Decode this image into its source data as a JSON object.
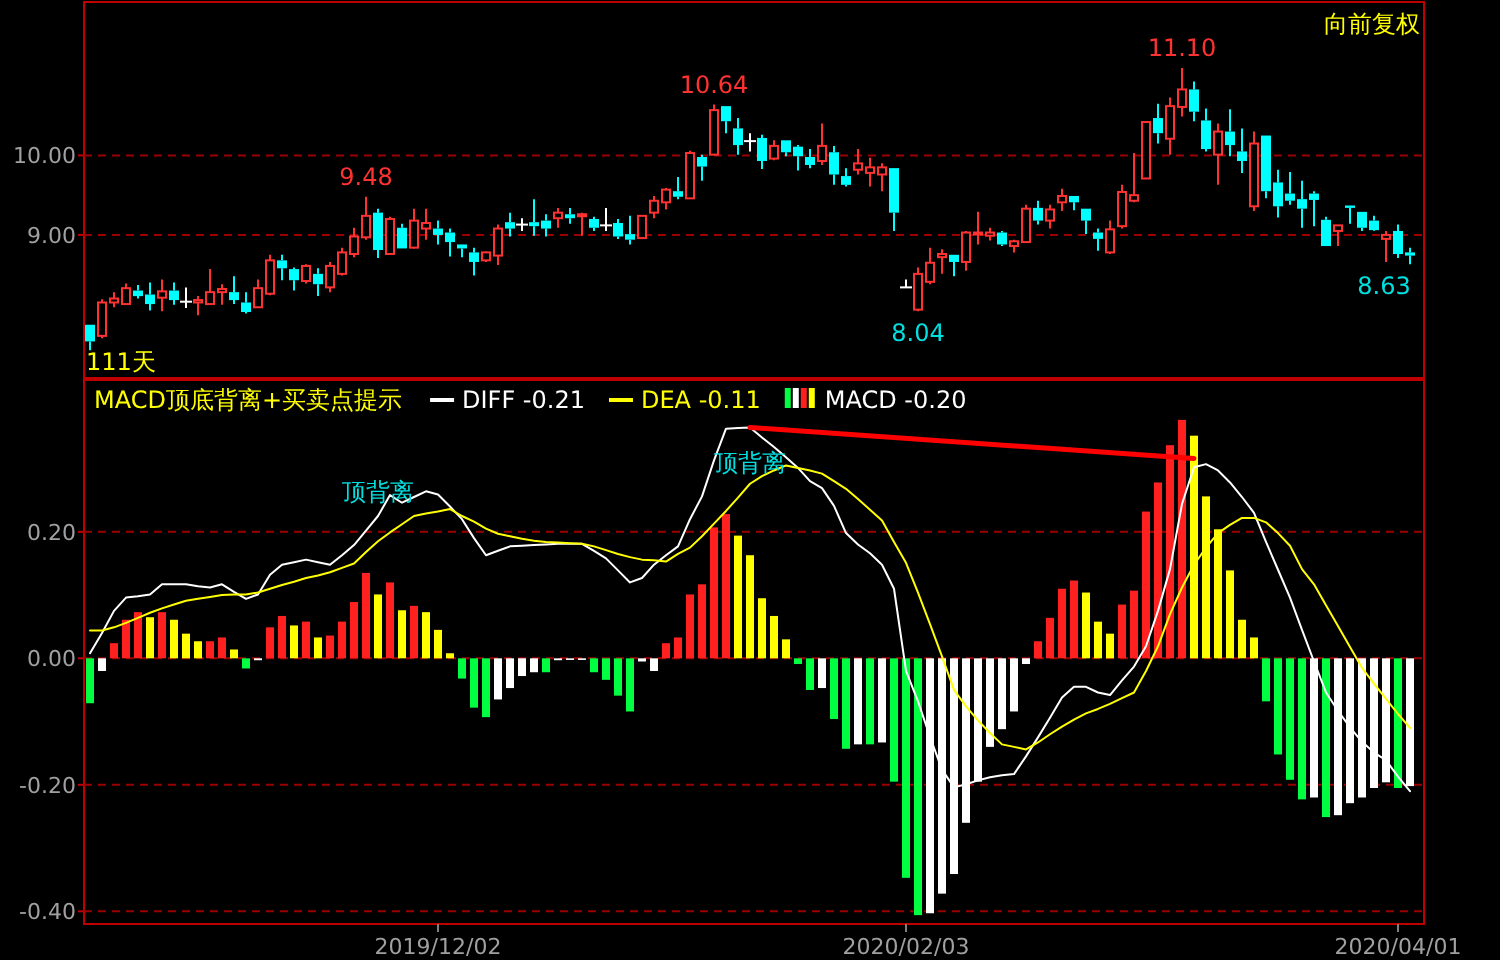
{
  "chart_data": [
    {
      "type": "candlestick",
      "categories": [
        null,
        null,
        null,
        null,
        null,
        null,
        null,
        null,
        null,
        null,
        null,
        null,
        null,
        null,
        null,
        null,
        null,
        null,
        null,
        null,
        null,
        null,
        null,
        null,
        null,
        null,
        null,
        null,
        null,
        "2019/12/02",
        null,
        null,
        null,
        null,
        null,
        null,
        null,
        null,
        null,
        null,
        null,
        null,
        null,
        null,
        null,
        null,
        null,
        null,
        null,
        null,
        null,
        null,
        null,
        null,
        null,
        null,
        null,
        null,
        null,
        null,
        null,
        null,
        null,
        null,
        null,
        null,
        null,
        null,
        "2020/02/03",
        null,
        null,
        null,
        null,
        null,
        null,
        null,
        null,
        null,
        null,
        null,
        null,
        null,
        null,
        null,
        null,
        null,
        null,
        null,
        null,
        null,
        null,
        null,
        null,
        null,
        null,
        null,
        null,
        null,
        null,
        null,
        null,
        null,
        null,
        null,
        null,
        null,
        null,
        null,
        null,
        "2020/04/01",
        null
      ],
      "ohlc": [
        [
          7.87,
          7.87,
          7.55,
          7.66
        ],
        [
          7.73,
          8.19,
          7.7,
          8.15
        ],
        [
          8.15,
          8.28,
          8.09,
          8.2
        ],
        [
          8.13,
          8.39,
          8.12,
          8.33
        ],
        [
          8.3,
          8.37,
          8.2,
          8.23
        ],
        [
          8.25,
          8.4,
          8.05,
          8.13
        ],
        [
          8.21,
          8.44,
          8.04,
          8.29
        ],
        [
          8.3,
          8.4,
          8.12,
          8.18
        ],
        [
          8.16,
          8.34,
          8.08,
          8.16
        ],
        [
          8.15,
          8.23,
          7.99,
          8.18
        ],
        [
          8.13,
          8.57,
          8.12,
          8.28
        ],
        [
          8.28,
          8.38,
          8.12,
          8.32
        ],
        [
          8.28,
          8.48,
          8.13,
          8.18
        ],
        [
          8.15,
          8.28,
          8.01,
          8.03
        ],
        [
          8.09,
          8.44,
          8.08,
          8.33
        ],
        [
          8.26,
          8.75,
          8.24,
          8.68
        ],
        [
          8.68,
          8.75,
          8.43,
          8.58
        ],
        [
          8.57,
          8.59,
          8.3,
          8.43
        ],
        [
          8.42,
          8.63,
          8.39,
          8.61
        ],
        [
          8.51,
          8.58,
          8.23,
          8.38
        ],
        [
          8.34,
          8.66,
          8.28,
          8.61
        ],
        [
          8.51,
          8.84,
          8.49,
          8.78
        ],
        [
          8.76,
          9.09,
          8.72,
          8.98
        ],
        [
          8.97,
          9.48,
          8.94,
          9.24
        ],
        [
          9.28,
          9.33,
          8.71,
          8.81
        ],
        [
          8.76,
          9.23,
          8.76,
          9.2
        ],
        [
          9.09,
          9.14,
          8.83,
          8.83
        ],
        [
          8.84,
          9.33,
          8.83,
          9.18
        ],
        [
          9.08,
          9.33,
          8.94,
          9.15
        ],
        [
          9.08,
          9.18,
          8.88,
          9.0
        ],
        [
          9.03,
          9.08,
          8.73,
          8.91
        ],
        [
          8.88,
          8.88,
          8.72,
          8.83
        ],
        [
          8.78,
          8.84,
          8.49,
          8.66
        ],
        [
          8.68,
          8.79,
          8.66,
          8.78
        ],
        [
          8.74,
          9.13,
          8.62,
          9.08
        ],
        [
          9.16,
          9.28,
          8.98,
          9.08
        ],
        [
          9.13,
          9.21,
          9.05,
          9.13
        ],
        [
          9.16,
          9.45,
          8.99,
          9.11
        ],
        [
          9.18,
          9.26,
          8.98,
          9.08
        ],
        [
          9.21,
          9.34,
          9.09,
          9.28
        ],
        [
          9.26,
          9.34,
          9.14,
          9.21
        ],
        [
          9.24,
          9.28,
          8.99,
          9.26
        ],
        [
          9.2,
          9.23,
          9.05,
          9.09
        ],
        [
          9.12,
          9.34,
          9.05,
          9.12
        ],
        [
          9.15,
          9.2,
          8.95,
          8.98
        ],
        [
          9.01,
          9.24,
          8.88,
          8.94
        ],
        [
          8.96,
          9.24,
          8.96,
          9.24
        ],
        [
          9.28,
          9.49,
          9.21,
          9.43
        ],
        [
          9.41,
          9.59,
          9.32,
          9.57
        ],
        [
          9.55,
          9.73,
          9.45,
          9.48
        ],
        [
          9.46,
          10.06,
          9.46,
          10.03
        ],
        [
          9.98,
          10.01,
          9.68,
          9.86
        ],
        [
          10.01,
          10.64,
          10.01,
          10.57
        ],
        [
          10.62,
          10.62,
          10.28,
          10.43
        ],
        [
          10.34,
          10.47,
          10.01,
          10.13
        ],
        [
          10.18,
          10.28,
          10.05,
          10.18
        ],
        [
          10.22,
          10.26,
          9.83,
          9.93
        ],
        [
          9.96,
          10.19,
          9.94,
          10.12
        ],
        [
          10.19,
          10.19,
          9.99,
          10.04
        ],
        [
          10.11,
          10.13,
          9.81,
          9.99
        ],
        [
          9.98,
          10.08,
          9.84,
          9.88
        ],
        [
          9.93,
          10.4,
          9.88,
          10.12
        ],
        [
          10.04,
          10.12,
          9.63,
          9.76
        ],
        [
          9.74,
          9.84,
          9.61,
          9.63
        ],
        [
          9.82,
          10.08,
          9.76,
          9.9
        ],
        [
          9.78,
          9.97,
          9.61,
          9.85
        ],
        [
          9.76,
          9.9,
          9.55,
          9.85
        ],
        [
          9.84,
          9.84,
          9.05,
          9.28
        ],
        [
          8.34,
          8.44,
          8.34,
          8.34
        ],
        [
          8.06,
          8.59,
          8.04,
          8.51
        ],
        [
          8.41,
          8.84,
          8.38,
          8.65
        ],
        [
          8.72,
          8.82,
          8.51,
          8.76
        ],
        [
          8.75,
          8.75,
          8.48,
          8.66
        ],
        [
          8.66,
          9.05,
          8.55,
          9.03
        ],
        [
          9.01,
          9.29,
          8.88,
          9.03
        ],
        [
          8.99,
          9.09,
          8.93,
          9.03
        ],
        [
          9.03,
          9.05,
          8.86,
          8.88
        ],
        [
          8.86,
          8.94,
          8.78,
          8.92
        ],
        [
          8.91,
          9.38,
          8.91,
          9.33
        ],
        [
          9.34,
          9.43,
          9.13,
          9.18
        ],
        [
          9.18,
          9.38,
          9.08,
          9.32
        ],
        [
          9.41,
          9.58,
          9.3,
          9.49
        ],
        [
          9.49,
          9.49,
          9.31,
          9.41
        ],
        [
          9.33,
          9.33,
          9.01,
          9.18
        ],
        [
          9.03,
          9.08,
          8.8,
          8.95
        ],
        [
          8.78,
          9.18,
          8.76,
          9.07
        ],
        [
          9.11,
          9.63,
          9.08,
          9.54
        ],
        [
          9.43,
          10.03,
          9.41,
          9.5
        ],
        [
          9.71,
          10.42,
          9.71,
          10.42
        ],
        [
          10.47,
          10.65,
          10.15,
          10.28
        ],
        [
          10.21,
          10.73,
          10.01,
          10.62
        ],
        [
          10.61,
          11.1,
          10.49,
          10.83
        ],
        [
          10.83,
          10.93,
          10.43,
          10.55
        ],
        [
          10.44,
          10.59,
          10.05,
          10.08
        ],
        [
          10.01,
          10.4,
          9.63,
          10.3
        ],
        [
          10.3,
          10.58,
          9.99,
          10.13
        ],
        [
          10.05,
          10.34,
          9.78,
          9.93
        ],
        [
          9.36,
          10.3,
          9.3,
          10.15
        ],
        [
          10.25,
          10.25,
          9.46,
          9.55
        ],
        [
          9.66,
          9.82,
          9.22,
          9.36
        ],
        [
          9.52,
          9.79,
          9.38,
          9.43
        ],
        [
          9.45,
          9.68,
          9.09,
          9.33
        ],
        [
          9.52,
          9.55,
          9.11,
          9.44
        ],
        [
          9.19,
          9.23,
          8.86,
          8.86
        ],
        [
          9.05,
          9.12,
          8.86,
          9.12
        ],
        [
          9.37,
          9.37,
          9.14,
          9.34
        ],
        [
          9.29,
          9.29,
          9.05,
          9.09
        ],
        [
          9.18,
          9.24,
          9.05,
          9.06
        ],
        [
          8.95,
          9.05,
          8.66,
          9.0
        ],
        [
          9.05,
          9.13,
          8.71,
          8.76
        ],
        [
          8.78,
          8.84,
          8.63,
          8.74
        ]
      ],
      "ylim": [
        7.2,
        11.93
      ],
      "yticks": [
        {
          "value": 10,
          "label": "10.00"
        },
        {
          "value": 9,
          "label": "9.00"
        }
      ],
      "grid": "y",
      "tick_labels": "y",
      "annotations": [
        "9.48",
        "10.64",
        "11.10",
        "8.04",
        "8.63",
        "111天",
        "向前复权"
      ]
    },
    {
      "type": "bar",
      "title": "MACD顶底背离+买卖点提示",
      "categories": [
        null,
        null,
        null,
        null,
        null,
        null,
        null,
        null,
        null,
        null,
        null,
        null,
        null,
        null,
        null,
        null,
        null,
        null,
        null,
        null,
        null,
        null,
        null,
        null,
        null,
        null,
        null,
        null,
        null,
        "2019/12/02",
        null,
        null,
        null,
        null,
        null,
        null,
        null,
        null,
        null,
        null,
        null,
        null,
        null,
        null,
        null,
        null,
        null,
        null,
        null,
        null,
        null,
        null,
        null,
        null,
        null,
        null,
        null,
        null,
        null,
        null,
        null,
        null,
        null,
        null,
        null,
        null,
        null,
        null,
        "2020/02/03",
        null,
        null,
        null,
        null,
        null,
        null,
        null,
        null,
        null,
        null,
        null,
        null,
        null,
        null,
        null,
        null,
        null,
        null,
        null,
        null,
        null,
        null,
        null,
        null,
        null,
        null,
        null,
        null,
        null,
        null,
        null,
        null,
        null,
        null,
        null,
        null,
        null,
        null,
        null,
        null,
        "2020/04/01",
        null
      ],
      "series": [
        {
          "name": "DIFF -0.21",
          "type": "line",
          "color": "#ffffff",
          "values": [
            0.008,
            0.04,
            0.075,
            0.096,
            0.098,
            0.101,
            0.117,
            0.117,
            0.117,
            0.114,
            0.112,
            0.117,
            0.105,
            0.094,
            0.101,
            0.132,
            0.148,
            0.152,
            0.156,
            0.152,
            0.148,
            0.163,
            0.179,
            0.202,
            0.225,
            0.258,
            0.246,
            0.255,
            0.264,
            0.259,
            0.24,
            0.22,
            0.19,
            0.163,
            0.17,
            0.177,
            0.178,
            0.179,
            0.18,
            0.181,
            0.181,
            0.181,
            0.17,
            0.158,
            0.139,
            0.12,
            0.127,
            0.148,
            0.163,
            0.177,
            0.22,
            0.256,
            0.313,
            0.363,
            0.364,
            0.365,
            0.349,
            0.334,
            0.318,
            0.301,
            0.28,
            0.269,
            0.241,
            0.198,
            0.18,
            0.166,
            0.148,
            0.11,
            -0.02,
            -0.068,
            -0.124,
            -0.176,
            -0.204,
            -0.199,
            -0.193,
            -0.188,
            -0.185,
            -0.183,
            -0.155,
            -0.125,
            -0.094,
            -0.062,
            -0.045,
            -0.045,
            -0.054,
            -0.058,
            -0.035,
            -0.013,
            0.019,
            0.075,
            0.141,
            0.244,
            0.302,
            0.307,
            0.297,
            0.278,
            0.255,
            0.23,
            0.184,
            0.14,
            0.096,
            0.045,
            -0.005,
            -0.054,
            -0.083,
            -0.109,
            -0.132,
            -0.149,
            -0.161,
            -0.187,
            -0.21
          ]
        },
        {
          "name": "DEA -0.11",
          "type": "line",
          "color": "#ffff00",
          "values": [
            0.044,
            0.044,
            0.049,
            0.056,
            0.064,
            0.072,
            0.079,
            0.085,
            0.091,
            0.094,
            0.097,
            0.1,
            0.101,
            0.101,
            0.104,
            0.11,
            0.116,
            0.121,
            0.127,
            0.131,
            0.136,
            0.143,
            0.15,
            0.168,
            0.185,
            0.199,
            0.212,
            0.225,
            0.229,
            0.232,
            0.236,
            0.225,
            0.216,
            0.205,
            0.197,
            0.193,
            0.189,
            0.186,
            0.184,
            0.183,
            0.182,
            0.181,
            0.177,
            0.171,
            0.165,
            0.16,
            0.156,
            0.155,
            0.153,
            0.165,
            0.175,
            0.193,
            0.213,
            0.233,
            0.254,
            0.276,
            0.288,
            0.297,
            0.305,
            0.301,
            0.297,
            0.292,
            0.28,
            0.268,
            0.252,
            0.235,
            0.218,
            0.184,
            0.151,
            0.104,
            0.054,
            0.003,
            -0.05,
            -0.076,
            -0.098,
            -0.118,
            -0.136,
            -0.14,
            -0.144,
            -0.133,
            -0.12,
            -0.108,
            -0.097,
            -0.087,
            -0.08,
            -0.072,
            -0.063,
            -0.054,
            -0.02,
            0.019,
            0.07,
            0.112,
            0.148,
            0.175,
            0.198,
            0.211,
            0.222,
            0.222,
            0.215,
            0.198,
            0.178,
            0.141,
            0.117,
            0.084,
            0.051,
            0.018,
            -0.015,
            -0.04,
            -0.064,
            -0.088,
            -0.11
          ]
        },
        {
          "name": "MACD -0.20",
          "type": "bar",
          "values": [
            -0.071,
            -0.02,
            0.024,
            0.061,
            0.073,
            0.065,
            0.073,
            0.061,
            0.039,
            0.027,
            0.027,
            0.033,
            0.014,
            -0.016,
            -0.003,
            0.049,
            0.067,
            0.052,
            0.058,
            0.033,
            0.036,
            0.058,
            0.089,
            0.135,
            0.101,
            0.12,
            0.076,
            0.083,
            0.073,
            0.045,
            0.008,
            -0.032,
            -0.078,
            -0.093,
            -0.065,
            -0.047,
            -0.028,
            -0.022,
            -0.022,
            -0.003,
            -0.002,
            -0.001,
            -0.022,
            -0.034,
            -0.059,
            -0.084,
            -0.005,
            -0.02,
            0.024,
            0.033,
            0.101,
            0.117,
            0.207,
            0.228,
            0.194,
            0.163,
            0.095,
            0.067,
            0.03,
            -0.009,
            -0.05,
            -0.047,
            -0.096,
            -0.143,
            -0.136,
            -0.136,
            -0.133,
            -0.195,
            -0.347,
            -0.406,
            -0.403,
            -0.372,
            -0.341,
            -0.26,
            -0.195,
            -0.14,
            -0.112,
            -0.084,
            -0.009,
            0.027,
            0.064,
            0.11,
            0.123,
            0.104,
            0.058,
            0.039,
            0.085,
            0.107,
            0.232,
            0.278,
            0.337,
            0.377,
            0.352,
            0.256,
            0.204,
            0.139,
            0.061,
            0.033,
            -0.068,
            -0.152,
            -0.192,
            -0.223,
            -0.22,
            -0.251,
            -0.248,
            -0.229,
            -0.22,
            -0.205,
            -0.196,
            -0.205,
            -0.202
          ],
          "colors": [
            "#00ff40",
            "#ffffff",
            "#ff2020",
            "#ff2020",
            "#ff2020",
            "#ffff00",
            "#ff2020",
            "#ffff00",
            "#ffff00",
            "#ffff00",
            "#ff2020",
            "#ff2020",
            "#ffff00",
            "#00ff40",
            "#ffffff",
            "#ff2020",
            "#ff2020",
            "#ffff00",
            "#ff2020",
            "#ffff00",
            "#ff2020",
            "#ff2020",
            "#ff2020",
            "#ff2020",
            "#ffff00",
            "#ff2020",
            "#ffff00",
            "#ff2020",
            "#ffff00",
            "#ffff00",
            "#ffff00",
            "#00ff40",
            "#00ff40",
            "#00ff40",
            "#ffffff",
            "#ffffff",
            "#ffffff",
            "#ffffff",
            "#00ff40",
            "#ffffff",
            "#ffffff",
            "#ffffff",
            "#00ff40",
            "#00ff40",
            "#00ff40",
            "#00ff40",
            "#ffffff",
            "#ffffff",
            "#ff2020",
            "#ff2020",
            "#ff2020",
            "#ff2020",
            "#ff2020",
            "#ff2020",
            "#ffff00",
            "#ffff00",
            "#ffff00",
            "#ffff00",
            "#ffff00",
            "#00ff40",
            "#00ff40",
            "#ffffff",
            "#00ff40",
            "#00ff40",
            "#ffffff",
            "#00ff40",
            "#ffffff",
            "#00ff40",
            "#00ff40",
            "#00ff40",
            "#ffffff",
            "#ffffff",
            "#ffffff",
            "#ffffff",
            "#ffffff",
            "#ffffff",
            "#ffffff",
            "#ffffff",
            "#ffffff",
            "#ff2020",
            "#ff2020",
            "#ff2020",
            "#ff2020",
            "#ffff00",
            "#ffff00",
            "#ffff00",
            "#ff2020",
            "#ff2020",
            "#ff2020",
            "#ff2020",
            "#ff2020",
            "#ff2020",
            "#ffff00",
            "#ffff00",
            "#ffff00",
            "#ffff00",
            "#ffff00",
            "#ffff00",
            "#00ff40",
            "#00ff40",
            "#00ff40",
            "#00ff40",
            "#ffffff",
            "#00ff40",
            "#ffffff",
            "#ffffff",
            "#ffffff",
            "#ffffff",
            "#ffffff",
            "#00ff40",
            "#ffffff"
          ]
        },
        {
          "type": "line",
          "color": "#ff0000",
          "values": [
            null,
            null,
            null,
            null,
            null,
            null,
            null,
            null,
            null,
            null,
            null,
            null,
            null,
            null,
            null,
            null,
            null,
            null,
            null,
            null,
            null,
            null,
            null,
            null,
            null,
            null,
            null,
            null,
            null,
            null,
            null,
            null,
            null,
            null,
            null,
            null,
            null,
            null,
            null,
            null,
            null,
            null,
            null,
            null,
            null,
            null,
            null,
            null,
            null,
            null,
            null,
            null,
            null,
            null,
            null,
            0.365,
            null,
            null,
            null,
            null,
            null,
            null,
            null,
            null,
            null,
            null,
            null,
            null,
            null,
            null,
            null,
            null,
            null,
            null,
            null,
            null,
            null,
            null,
            null,
            null,
            null,
            null,
            null,
            null,
            null,
            null,
            null,
            null,
            null,
            null,
            null,
            null,
            0.316,
            null,
            null,
            null,
            null,
            null,
            null,
            null,
            null,
            null,
            null,
            null,
            null,
            null,
            null,
            null,
            null,
            null,
            null
          ]
        }
      ],
      "ylim": [
        -0.42,
        0.44
      ],
      "yticks": [
        {
          "value": 0.2,
          "label": "0.20"
        },
        {
          "value": 0,
          "label": "0.00"
        },
        {
          "value": -0.2,
          "label": "-0.20"
        },
        {
          "value": -0.4,
          "label": "-0.40"
        }
      ],
      "grid": "y",
      "legend": "top left",
      "annotations": [
        "顶背离",
        "顶背离"
      ]
    }
  ]
}
